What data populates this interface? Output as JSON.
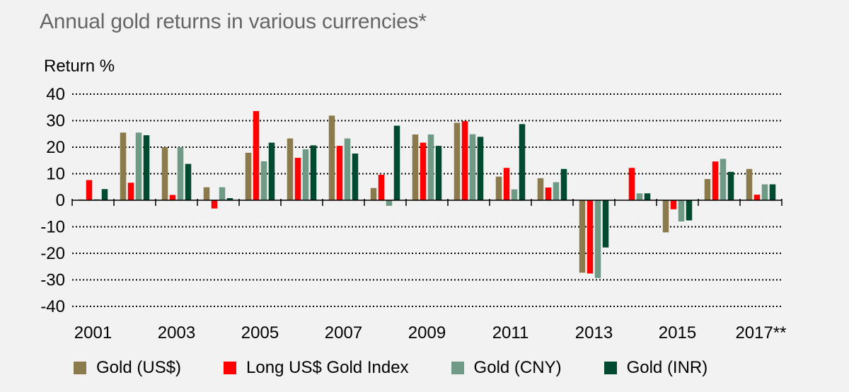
{
  "chart_data": {
    "type": "bar",
    "title": "Annual gold returns in various currencies*",
    "ylabel": "Return %",
    "xlabel": "",
    "ylim": [
      -40,
      40
    ],
    "yticks": [
      40,
      30,
      20,
      10,
      0,
      -10,
      -20,
      -30,
      -40
    ],
    "grid": true,
    "legend_placement": "bottom",
    "categories": [
      "2001",
      "2002",
      "2003",
      "2004",
      "2005",
      "2006",
      "2007",
      "2008",
      "2009",
      "2010",
      "2011",
      "2012",
      "2013",
      "2014",
      "2015",
      "2016",
      "2017**"
    ],
    "category_labels": [
      "2001",
      "",
      "2003",
      "",
      "2005",
      "",
      "2007",
      "",
      "2009",
      "",
      "2011",
      "",
      "2013",
      "",
      "2015",
      "",
      "2017**"
    ],
    "series": [
      {
        "name": "Gold (US$)",
        "color": "#8b7a4b",
        "values": [
          0.3,
          25.5,
          20,
          4.9,
          17.9,
          23.3,
          31.9,
          4.6,
          24.8,
          29.2,
          8.9,
          8.3,
          -27.3,
          0,
          -12.1,
          8,
          11.8
        ]
      },
      {
        "name": "Long US$ Gold Index",
        "color": "#ff0000",
        "values": [
          7.6,
          6.6,
          2,
          -3.1,
          33.6,
          16,
          20.5,
          9.6,
          21.7,
          29.8,
          12.2,
          4.8,
          -27.6,
          12.2,
          -3.4,
          14.6,
          2.1
        ]
      },
      {
        "name": "Gold (CNY)",
        "color": "#6f9a86",
        "values": [
          0.4,
          25.5,
          20,
          4.9,
          14.7,
          19.2,
          23.3,
          -2.1,
          24.8,
          24.9,
          4.1,
          6.8,
          -29.3,
          2.6,
          -8,
          15.6,
          6
        ]
      },
      {
        "name": "Gold (INR)",
        "color": "#004b30",
        "values": [
          4.2,
          24.5,
          13.7,
          0.8,
          21.7,
          20.7,
          17.6,
          28.1,
          20.5,
          23.9,
          28.7,
          11.8,
          -17.8,
          2.6,
          -7.6,
          10.7,
          6
        ]
      }
    ]
  }
}
